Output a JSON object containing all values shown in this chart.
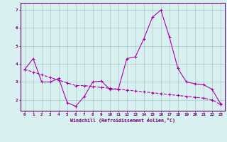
{
  "xlabel": "Windchill (Refroidissement éolien,°C)",
  "x_hours": [
    0,
    1,
    2,
    3,
    4,
    5,
    6,
    7,
    8,
    9,
    10,
    11,
    12,
    13,
    14,
    15,
    16,
    17,
    18,
    19,
    20,
    21,
    22,
    23
  ],
  "line1_y": [
    3.7,
    4.3,
    3.0,
    3.0,
    3.2,
    1.85,
    1.65,
    2.2,
    3.0,
    3.05,
    2.6,
    2.6,
    4.3,
    4.4,
    5.4,
    6.6,
    7.0,
    5.5,
    3.75,
    3.0,
    2.9,
    2.85,
    2.6,
    1.8
  ],
  "line2_y": [
    3.7,
    3.55,
    3.4,
    3.25,
    3.1,
    2.95,
    2.8,
    2.8,
    2.75,
    2.7,
    2.65,
    2.6,
    2.55,
    2.5,
    2.45,
    2.4,
    2.35,
    2.3,
    2.25,
    2.2,
    2.15,
    2.1,
    2.0,
    1.75
  ],
  "line_color": "#AA00AA",
  "bg_color": "#D8F0F0",
  "grid_color": "#AACCCC",
  "axis_color": "#660066",
  "ylim": [
    1.4,
    7.4
  ],
  "xlim": [
    -0.5,
    23.5
  ],
  "yticks": [
    2,
    3,
    4,
    5,
    6,
    7
  ],
  "xticks": [
    0,
    1,
    2,
    3,
    4,
    5,
    6,
    7,
    8,
    9,
    10,
    11,
    12,
    13,
    14,
    15,
    16,
    17,
    18,
    19,
    20,
    21,
    22,
    23
  ]
}
